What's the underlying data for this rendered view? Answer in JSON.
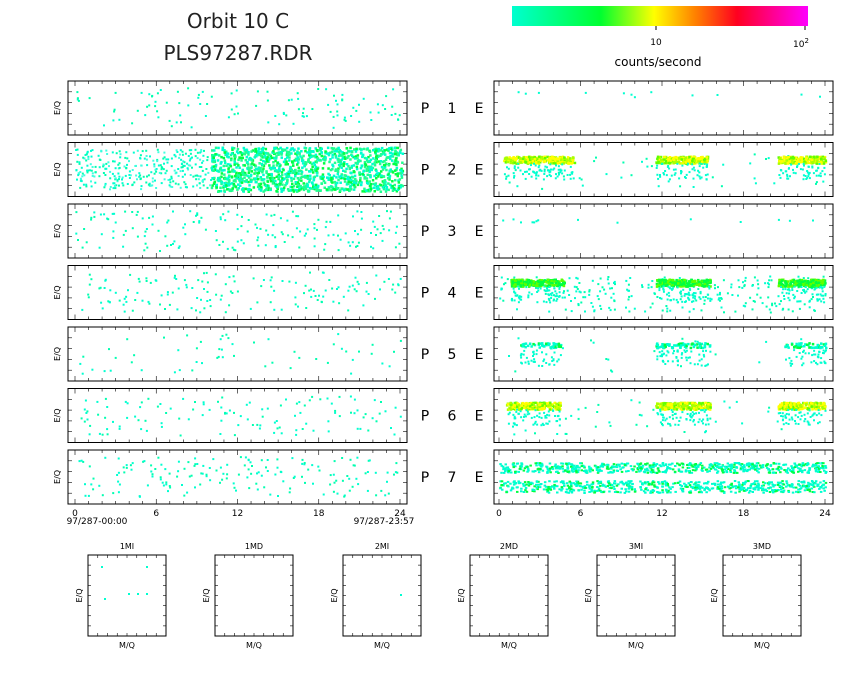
{
  "header": {
    "title_line1": "Orbit 10 C",
    "title_line2": "PLS97287.RDR"
  },
  "colorbar": {
    "label": "counts/second",
    "tick_10": "10",
    "tick_100_base": "10",
    "tick_100_exp": "2",
    "colors": [
      "#00ffd0",
      "#00ff40",
      "#ffff00",
      "#ff8000",
      "#ff0030",
      "#ff00ff"
    ]
  },
  "rows": [
    {
      "p": "P",
      "num": "1",
      "e": "E"
    },
    {
      "p": "P",
      "num": "2",
      "e": "E"
    },
    {
      "p": "P",
      "num": "3",
      "e": "E"
    },
    {
      "p": "P",
      "num": "4",
      "e": "E"
    },
    {
      "p": "P",
      "num": "5",
      "e": "E"
    },
    {
      "p": "P",
      "num": "6",
      "e": "E"
    },
    {
      "p": "P",
      "num": "7",
      "e": "E"
    }
  ],
  "axes": {
    "ylabel": "E/Q",
    "xticks": [
      "0",
      "6",
      "12",
      "18",
      "24"
    ],
    "start_time": "97/287-00:00",
    "end_time": "97/287-23:57"
  },
  "small_panels": {
    "titles": [
      "1MI",
      "1MD",
      "2MI",
      "2MD",
      "3MI",
      "3MD"
    ],
    "xlabel": "M/Q",
    "ylabel": "E/Q"
  },
  "chart_data": {
    "type": "heatmap",
    "x_range": [
      0,
      24
    ],
    "x_unit": "hours",
    "colorbar_scale": "log",
    "colorbar_range": [
      1,
      100
    ],
    "panels": {
      "P": [
        {
          "row": 1,
          "occupancy": "sparse scattered",
          "dominant_color": "cyan"
        },
        {
          "row": 2,
          "occupancy": "dense from hour 10 to 24",
          "dominant_color": "cyan-green"
        },
        {
          "row": 3,
          "occupancy": "sparse scattered",
          "dominant_color": "cyan"
        },
        {
          "row": 4,
          "occupancy": "sparse scattered",
          "dominant_color": "cyan"
        },
        {
          "row": 5,
          "occupancy": "very sparse",
          "dominant_color": "cyan"
        },
        {
          "row": 6,
          "occupancy": "sparse scattered",
          "dominant_color": "cyan"
        },
        {
          "row": 7,
          "occupancy": "moderate scattered",
          "dominant_color": "cyan"
        }
      ],
      "E": [
        {
          "row": 1,
          "occupancy": "very sparse",
          "dominant_color": "cyan"
        },
        {
          "row": 2,
          "bands": [
            [
              0.3,
              5.5
            ],
            [
              11.5,
              15.3
            ],
            [
              20.5,
              24
            ]
          ],
          "dominant_color": "yellow-green"
        },
        {
          "row": 3,
          "occupancy": "very sparse",
          "dominant_color": "cyan"
        },
        {
          "row": 4,
          "bands": [
            [
              0.8,
              4.8
            ],
            [
              11.5,
              15.5
            ],
            [
              20.5,
              24
            ]
          ],
          "dominant_color": "green"
        },
        {
          "row": 5,
          "bands": [
            [
              1.5,
              4.5
            ],
            [
              11.5,
              15.5
            ],
            [
              21,
              24
            ]
          ],
          "dominant_color": "cyan"
        },
        {
          "row": 6,
          "bands": [
            [
              0.5,
              4.5
            ],
            [
              11.5,
              15.5
            ],
            [
              20.5,
              24
            ]
          ],
          "dominant_color": "yellow-green"
        },
        {
          "row": 7,
          "bands": [
            [
              0,
              24
            ]
          ],
          "dominant_color": "cyan-green"
        }
      ]
    }
  }
}
